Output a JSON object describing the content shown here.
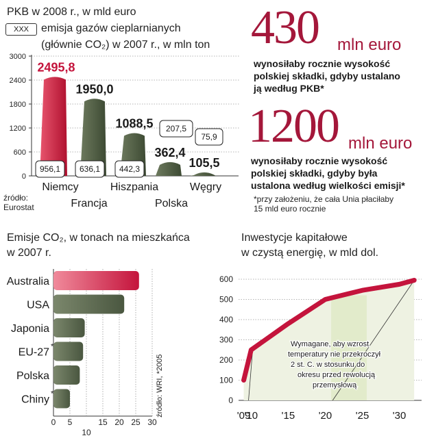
{
  "chart_data": [
    {
      "type": "bar",
      "title_lines": [
        "PKB w 2008 r., w mld euro",
        "emisja gazów cieplarnianych",
        "(głównie CO₂) w 2007 r., w mln ton"
      ],
      "legend_box": "XXX",
      "categories": [
        "Niemcy",
        "Francja",
        "Hiszpania",
        "Polska",
        "Węgry"
      ],
      "series": [
        {
          "values": [
            2495.8,
            1950.0,
            1088.5,
            362.4,
            105.5
          ],
          "labels": [
            "2495,8",
            "1950,0",
            "1088,5",
            "362,4",
            "105,5"
          ]
        },
        {
          "values": [
            956.1,
            636.1,
            442.3,
            207.5,
            75.9
          ],
          "labels": [
            "956,1",
            "636,1",
            "442,3",
            "207,5",
            "75,9"
          ]
        }
      ],
      "ylim": [
        0,
        3000
      ],
      "yticks": [
        "3000",
        "2400",
        "1800",
        "1200",
        "600",
        "0"
      ],
      "ytick_values": [
        3000,
        2400,
        1800,
        1200,
        600,
        0
      ],
      "source": [
        "źródło:",
        "Eurostat"
      ]
    },
    {
      "type": "bar",
      "orientation": "horizontal",
      "title_lines": [
        "Emisje CO₂, w tonach na mieszkańca",
        "w 2007 r."
      ],
      "categories": [
        "Australia",
        "USA",
        "Japonia",
        "EU-27",
        "Polska",
        "Chiny"
      ],
      "category_marks": [
        "",
        "",
        "",
        "*",
        "",
        "*"
      ],
      "values": [
        26,
        21.5,
        9.5,
        9,
        8,
        5
      ],
      "xlim": [
        0,
        30
      ],
      "xticks": [
        "0",
        "5",
        "10",
        "15",
        "20",
        "25",
        "30"
      ],
      "xtick_values": [
        0,
        5,
        10,
        15,
        20,
        25,
        30
      ],
      "source": "źródło: WRI, *2005"
    },
    {
      "type": "line",
      "title_lines": [
        "Inwestycje kapitałowe",
        "w czystą energię, w mld dol."
      ],
      "x": [
        2009,
        2010,
        2015,
        2020,
        2025,
        2030,
        2032
      ],
      "y": [
        100,
        250,
        380,
        500,
        545,
        575,
        595
      ],
      "xticks": [
        "'09",
        "'10",
        "'15",
        "'20",
        "'25",
        "'30"
      ],
      "xtick_values": [
        2009,
        2010,
        2015,
        2020,
        2025,
        2030
      ],
      "yticks": [
        "600",
        "500",
        "400",
        "300",
        "200",
        "100",
        "0"
      ],
      "ytick_values": [
        600,
        500,
        400,
        300,
        200,
        100,
        0
      ],
      "xlim": [
        2008.3,
        2033
      ],
      "ylim": [
        0,
        600
      ],
      "annotation": [
        "Wymagane, aby wzrost",
        "temperatury nie przekroczył",
        "2 st. C. w stosunku do",
        "okresu przed rewolucją",
        "przemysłową"
      ]
    }
  ],
  "callouts": [
    {
      "number": "430",
      "unit": "mln euro",
      "text_lines": [
        "wynosiłaby rocznie wysokość",
        "polskiej składki, gdyby ustalano",
        "ją według PKB*"
      ]
    },
    {
      "number": "1200",
      "unit": "mln euro",
      "text_lines": [
        "wynosiłaby rocznie wysokość",
        "polskiej składki, gdyby była",
        "ustalona według wielkości emisji*"
      ]
    }
  ],
  "footnote": [
    "*przy założeniu, że cała Unia płaciłaby",
    "15 mld euro rocznie"
  ],
  "colors": {
    "accent": "#c4143c",
    "dark": "#47553d",
    "callout": "#a4173a"
  }
}
